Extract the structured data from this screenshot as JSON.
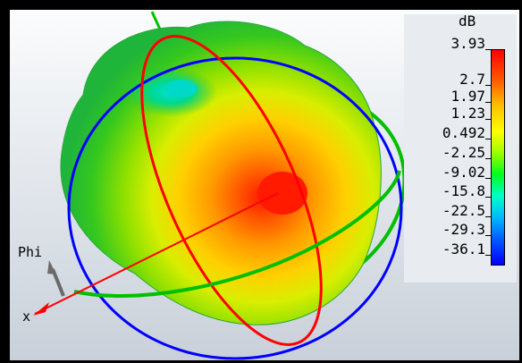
{
  "legend": {
    "unit": "dB",
    "ticks": [
      "3.93",
      "2.7",
      "1.97",
      "1.23",
      "0.492",
      "-2.25",
      "-9.02",
      "-15.8",
      "-22.5",
      "-29.3",
      "-36.1"
    ]
  },
  "axes": {
    "phi_label": "Phi",
    "x_label": "x"
  },
  "colors": {
    "theta_circle": "#ff0000",
    "phi_circle": "#0000ff",
    "equator_circle": "#00c000",
    "max_color": "#ff0000",
    "min_color": "#0000ff"
  },
  "colormap": [
    "#ff0000",
    "#ff5a00",
    "#ffc000",
    "#ffff00",
    "#9cff00",
    "#00ff20",
    "#00ffc8",
    "#00b8ff",
    "#004cff",
    "#0000ff"
  ]
}
